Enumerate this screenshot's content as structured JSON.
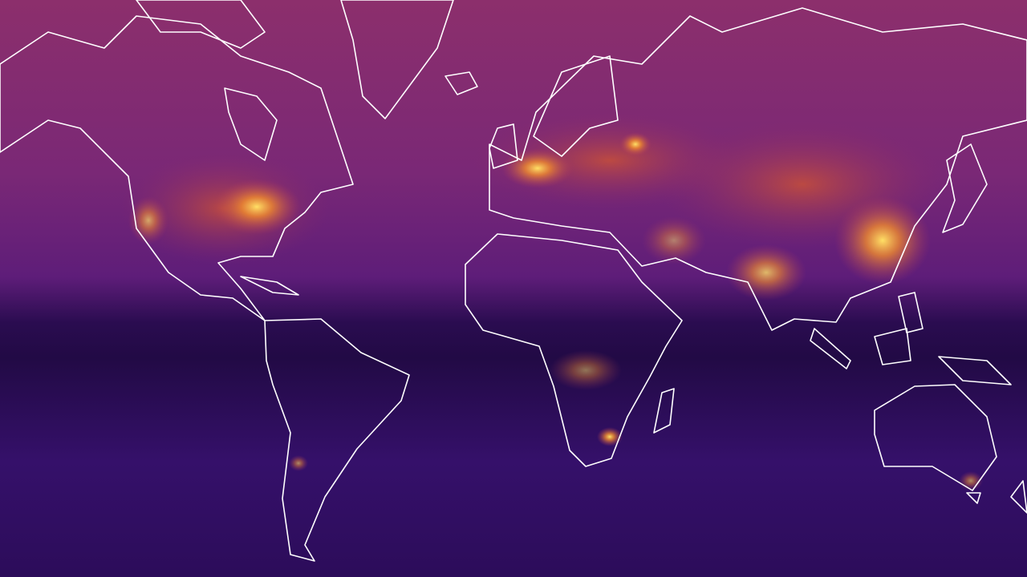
{
  "map": {
    "projection": "mercator",
    "colormap": "inferno-like",
    "colors": {
      "high_latitude": "#8c2f6c",
      "mid_latitude": "#6b2278",
      "equatorial_band": "#220a45",
      "southern": "#3b106e",
      "hotspot_low": "#d8582c",
      "hotspot_high": "#ffe066",
      "coastline": "#ffffff"
    },
    "hotspots": [
      {
        "region": "eastern-us",
        "intensity": 0.8
      },
      {
        "region": "california",
        "intensity": 0.6
      },
      {
        "region": "western-europe",
        "intensity": 0.75
      },
      {
        "region": "moscow",
        "intensity": 0.7
      },
      {
        "region": "eastern-china",
        "intensity": 1.0
      },
      {
        "region": "india",
        "intensity": 0.75
      },
      {
        "region": "middle-east",
        "intensity": 0.55
      },
      {
        "region": "central-africa",
        "intensity": 0.5
      },
      {
        "region": "johannesburg",
        "intensity": 0.95
      },
      {
        "region": "southeast-australia",
        "intensity": 0.5
      },
      {
        "region": "buenos-aires",
        "intensity": 0.45
      }
    ]
  }
}
